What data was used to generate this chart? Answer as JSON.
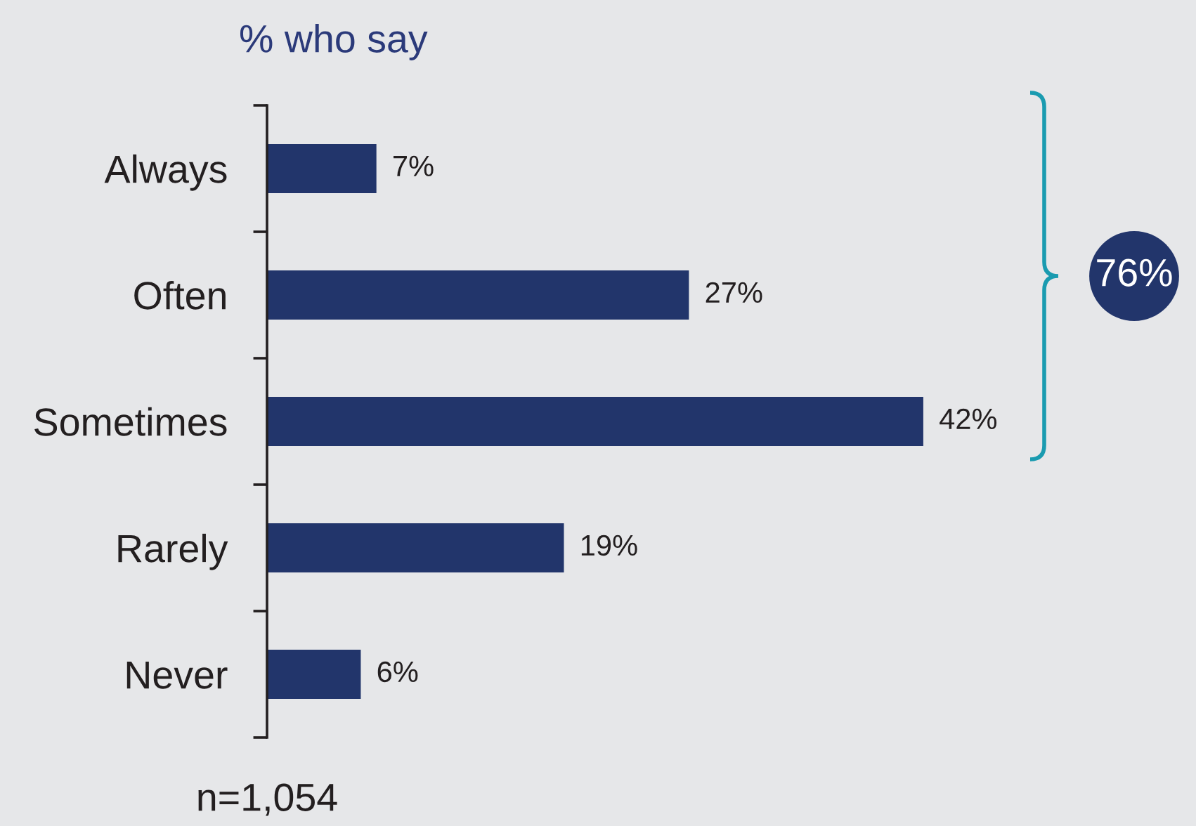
{
  "chart_data": {
    "type": "bar",
    "orientation": "horizontal",
    "title": "% who say",
    "categories": [
      "Always",
      "Often",
      "Sometimes",
      "Rarely",
      "Never"
    ],
    "values": [
      7,
      27,
      42,
      19,
      6
    ],
    "value_labels": [
      "7%",
      "27%",
      "42%",
      "19%",
      "6%"
    ],
    "color": "#22356b",
    "annotations": [
      "76%",
      "n=1,054"
    ],
    "grid": false,
    "legend": false
  }
}
